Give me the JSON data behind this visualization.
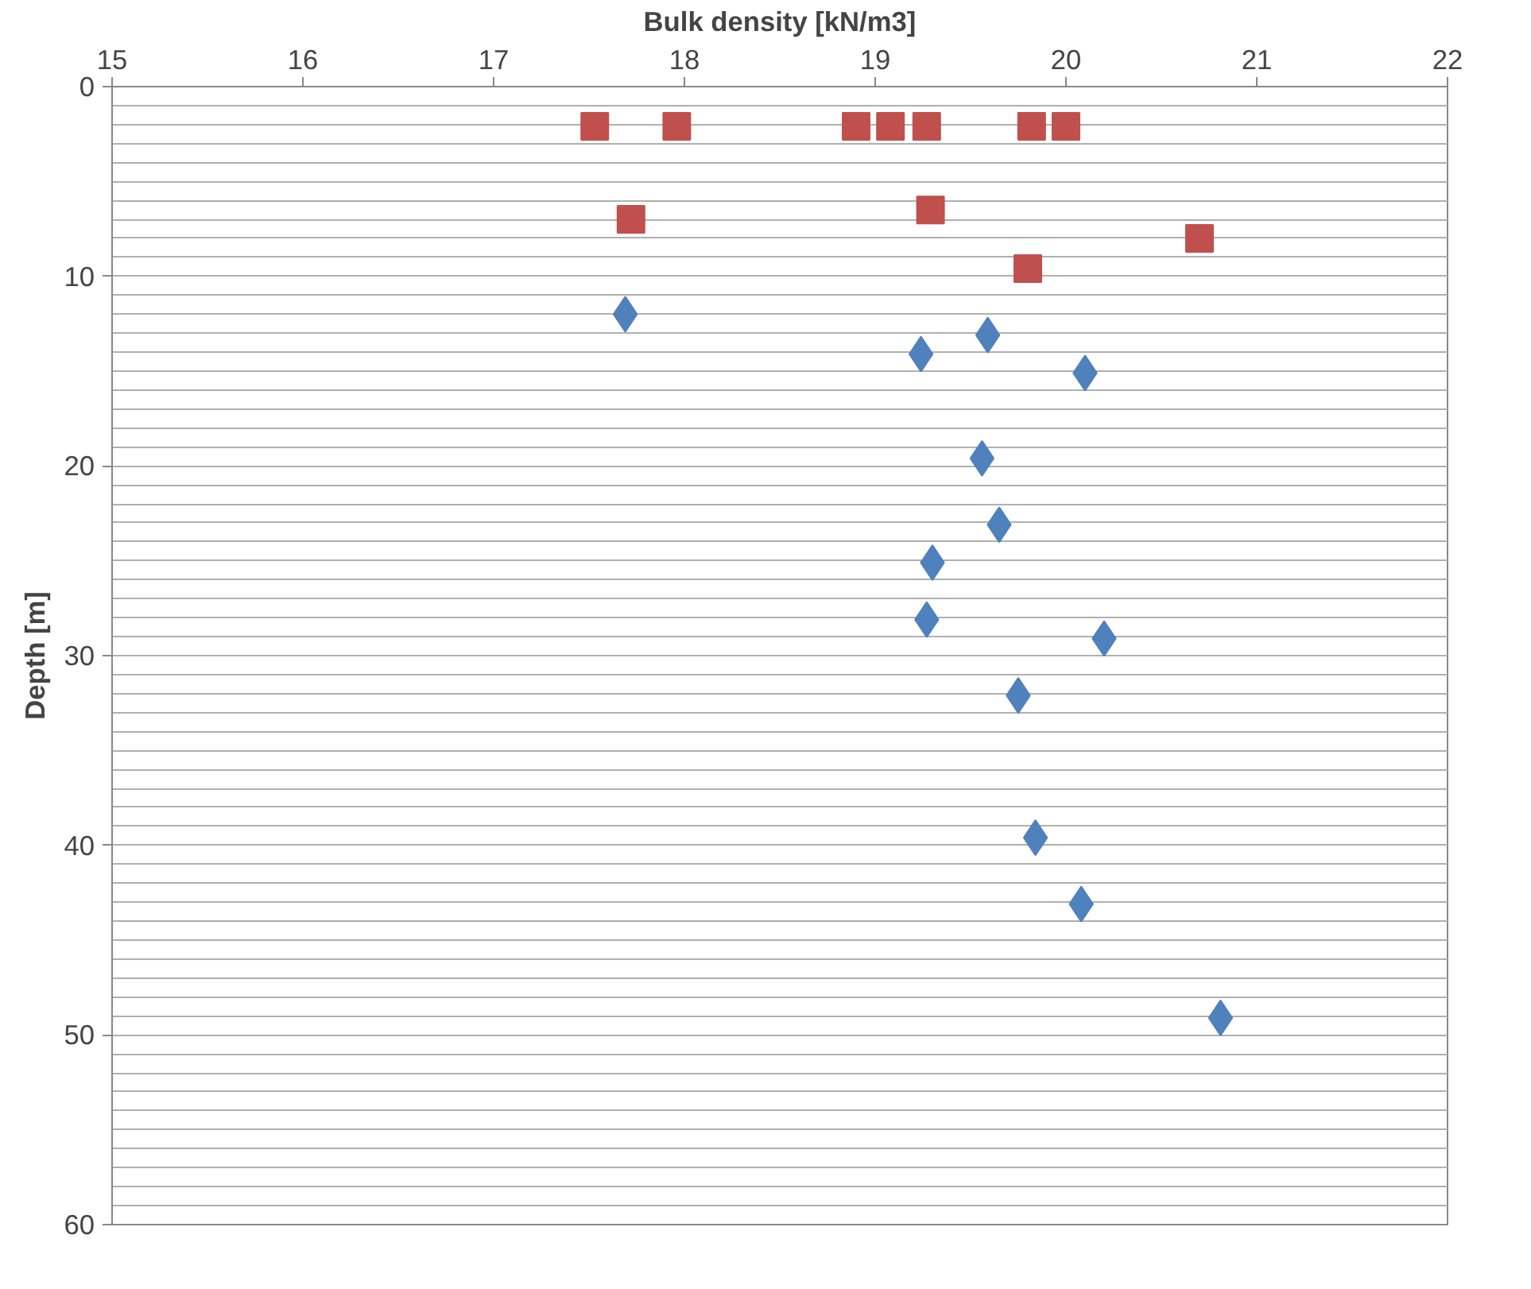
{
  "chart_data": {
    "type": "scatter",
    "xlabel": "Bulk density [kN/m3]",
    "ylabel": "Depth [m]",
    "xlim": [
      15,
      22
    ],
    "xticks": [
      15,
      16,
      17,
      18,
      19,
      20,
      21,
      22
    ],
    "ylim": [
      60,
      0
    ],
    "yticks": [
      0,
      10,
      20,
      30,
      40,
      50,
      60
    ],
    "grid": "y",
    "series": [
      {
        "color": "#c0504d",
        "marker": "square",
        "x": [
          17.53,
          17.96,
          18.9,
          19.08,
          19.27,
          19.82,
          20.0,
          17.72,
          19.29,
          20.7,
          19.8
        ],
        "values": [
          2.1,
          2.1,
          2.1,
          2.1,
          2.1,
          2.1,
          2.1,
          7.0,
          6.5,
          8.0,
          9.6
        ]
      },
      {
        "color": "#4f81bd",
        "marker": "diamond",
        "x": [
          17.69,
          19.59,
          19.24,
          20.1,
          19.56,
          19.65,
          19.3,
          19.27,
          20.2,
          19.75,
          19.84,
          20.08,
          20.81
        ],
        "values": [
          12.0,
          13.1,
          14.1,
          15.1,
          19.6,
          23.1,
          25.1,
          28.1,
          29.1,
          32.1,
          39.6,
          43.1,
          49.1
        ]
      }
    ]
  }
}
